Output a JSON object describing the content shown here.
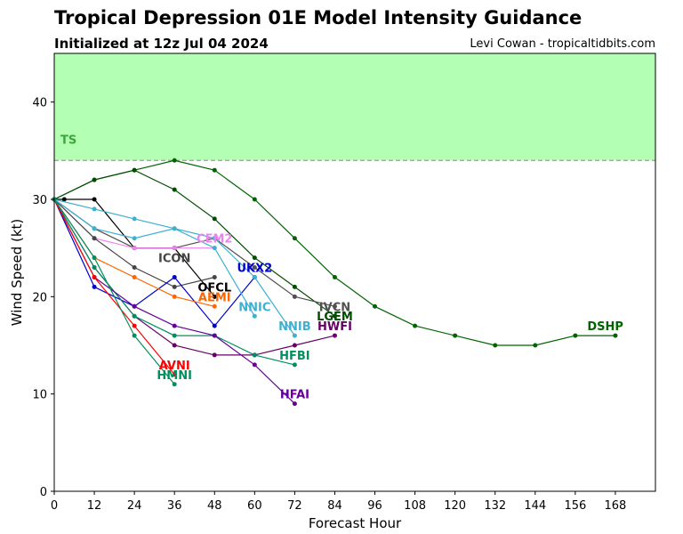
{
  "title": "Tropical Depression 01E Model Intensity Guidance",
  "subtitle": "Initialized at 12z Jul 04 2024",
  "credit": "Levi Cowan - tropicaltidbits.com",
  "chart_data": {
    "type": "line",
    "title": "Tropical Depression 01E Model Intensity Guidance",
    "xlabel": "Forecast Hour",
    "ylabel": "Wind Speed (kt)",
    "xlim": [
      0,
      180
    ],
    "ylim": [
      0,
      45
    ],
    "xticks": [
      0,
      12,
      24,
      36,
      48,
      60,
      72,
      84,
      96,
      108,
      120,
      132,
      144,
      156,
      168
    ],
    "yticks": [
      0,
      10,
      20,
      30,
      40
    ],
    "ts_threshold": 34,
    "ts_band_label": "TS",
    "ts_band_color": "#b3ffb3",
    "series": [
      {
        "name": "DSHP",
        "color": "#006400",
        "label_at": [
          165,
          17
        ],
        "x": [
          0,
          12,
          24,
          36,
          48,
          60,
          72,
          84,
          96,
          108,
          120,
          132,
          144,
          156,
          168
        ],
        "y": [
          30,
          32,
          33,
          34,
          33,
          30,
          26,
          22,
          19,
          17,
          16,
          15,
          15,
          16,
          16
        ]
      },
      {
        "name": "LGEM",
        "color": "#004d00",
        "label_at": [
          84,
          18
        ],
        "x": [
          0,
          12,
          24,
          36,
          48,
          60,
          72,
          84
        ],
        "y": [
          30,
          32,
          33,
          31,
          28,
          24,
          21,
          18
        ]
      },
      {
        "name": "IVCN",
        "color": "#505050",
        "label_at": [
          84,
          19
        ],
        "x": [
          0,
          12,
          24,
          36,
          48,
          60,
          72,
          84
        ],
        "y": [
          30,
          27,
          25,
          25,
          26,
          23,
          20,
          19
        ]
      },
      {
        "name": "OFCL",
        "color": "#000000",
        "label_at": [
          48,
          21
        ],
        "x": [
          0,
          3,
          12,
          24,
          36,
          48
        ],
        "y": [
          30,
          30,
          30,
          25,
          25,
          20
        ]
      },
      {
        "name": "CEM2",
        "color": "#ee82ee",
        "label_at": [
          48,
          26
        ],
        "x": [
          0,
          12,
          24,
          36,
          48
        ],
        "y": [
          30,
          26,
          25,
          25,
          25
        ]
      },
      {
        "name": "ICON",
        "color": "#444444",
        "label_at": [
          36,
          24
        ],
        "x": [
          0,
          12,
          24,
          36,
          48
        ],
        "y": [
          30,
          26,
          23,
          21,
          22
        ]
      },
      {
        "name": "UKX2",
        "color": "#0000cc",
        "label_at": [
          60,
          23
        ],
        "x": [
          0,
          12,
          24,
          36,
          48,
          60
        ],
        "y": [
          30,
          21,
          19,
          22,
          17,
          22
        ]
      },
      {
        "name": "AEMI",
        "color": "#ff6600",
        "label_at": [
          48,
          20
        ],
        "x": [
          0,
          12,
          24,
          36,
          48
        ],
        "y": [
          30,
          24,
          22,
          20,
          19
        ]
      },
      {
        "name": "NNIC",
        "color": "#3fb0d0",
        "label_at": [
          60,
          19
        ],
        "x": [
          0,
          12,
          24,
          36,
          48,
          60
        ],
        "y": [
          30,
          29,
          28,
          27,
          25,
          18
        ]
      },
      {
        "name": "NNIB",
        "color": "#3fb0d0",
        "label_at": [
          72,
          17
        ],
        "x": [
          0,
          12,
          24,
          36,
          48,
          60,
          72
        ],
        "y": [
          30,
          27,
          26,
          27,
          26,
          22,
          16
        ]
      },
      {
        "name": "HWFI",
        "color": "#660066",
        "label_at": [
          84,
          17
        ],
        "x": [
          0,
          12,
          24,
          36,
          48,
          60,
          72,
          84
        ],
        "y": [
          30,
          23,
          18,
          15,
          14,
          14,
          15,
          16
        ]
      },
      {
        "name": "HFBI",
        "color": "#009060",
        "label_at": [
          72,
          14
        ],
        "x": [
          0,
          12,
          24,
          36,
          48,
          60,
          72
        ],
        "y": [
          30,
          23,
          18,
          16,
          16,
          14,
          13
        ]
      },
      {
        "name": "HFAI",
        "color": "#660099",
        "label_at": [
          72,
          10
        ],
        "x": [
          0,
          12,
          24,
          36,
          48,
          60,
          72
        ],
        "y": [
          30,
          22,
          19,
          17,
          16,
          13,
          9
        ]
      },
      {
        "name": "AVNI",
        "color": "#ff0000",
        "label_at": [
          36,
          13
        ],
        "x": [
          0,
          12,
          24,
          36
        ],
        "y": [
          30,
          22,
          17,
          12
        ]
      },
      {
        "name": "HMNI",
        "color": "#009060",
        "label_at": [
          36,
          12
        ],
        "x": [
          0,
          12,
          24,
          36
        ],
        "y": [
          30,
          24,
          16,
          11
        ]
      }
    ]
  }
}
